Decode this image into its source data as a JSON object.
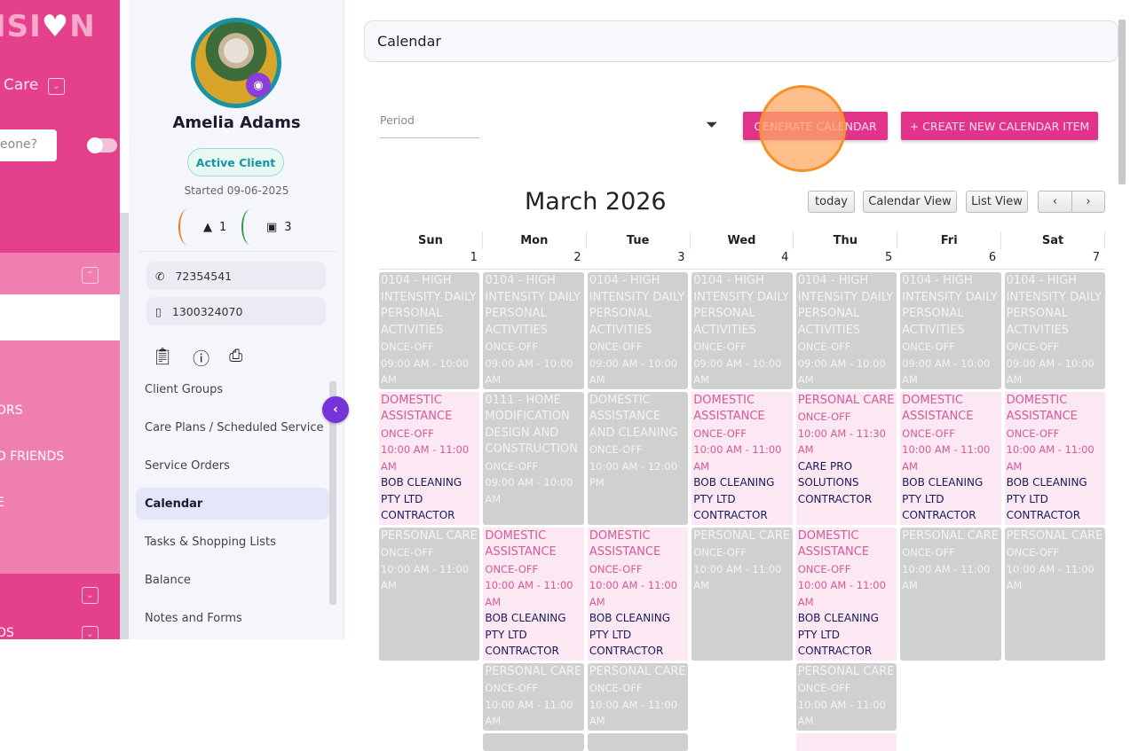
{
  "leftnav": {
    "logo": "ISI♥N",
    "org": "Care",
    "search_placeholder": "eone?",
    "items": [
      "ORS",
      "D FRIENDS",
      "E",
      "OS"
    ]
  },
  "client": {
    "name": "Amelia Adams",
    "status": "Active Client",
    "started": "Started 09-06-2025",
    "alerts": "1",
    "wallet": "3",
    "phone": "72354541",
    "mobile": "1300324070",
    "menu": [
      "Client Groups",
      "Care Plans / Scheduled Service",
      "Service Orders",
      "Calendar",
      "Tasks & Shopping Lists",
      "Balance",
      "Notes and Forms"
    ],
    "active_menu": "Calendar"
  },
  "main": {
    "title": "Calendar",
    "period_label": "Period",
    "generate": "GENERATE CALENDAR",
    "create": "+ CREATE NEW CALENDAR ITEM",
    "month": "March 2026",
    "today": "today",
    "calendar_view": "Calendar View",
    "list_view": "List View",
    "prev": "‹",
    "next": "›",
    "days": [
      "Sun",
      "Mon",
      "Tue",
      "Wed",
      "Thu",
      "Fri",
      "Sat"
    ],
    "dates": [
      "1",
      "2",
      "3",
      "4",
      "5",
      "6",
      "7"
    ]
  },
  "colors": {
    "brand_pink": "#e4408b",
    "button_pink": "#e2338a",
    "event_gray": "#d0d0d0",
    "event_pink_bg": "#fce8f2",
    "event_pink_text": "#d45a98",
    "accent_purple": "#7634d8",
    "teal": "#1893a6"
  },
  "events": [
    {
      "day": 0,
      "row": 1,
      "kind": "gray",
      "title": "0104 - HIGH INTENSITY DAILY PERSONAL ACTIVITIES",
      "freq": "ONCE-OFF",
      "time": "09:00 AM - 10:00 AM"
    },
    {
      "day": 1,
      "row": 1,
      "kind": "gray",
      "title": "0104 - HIGH INTENSITY DAILY PERSONAL ACTIVITIES",
      "freq": "ONCE-OFF",
      "time": "09:00 AM - 10:00 AM"
    },
    {
      "day": 2,
      "row": 1,
      "kind": "gray",
      "title": "0104 - HIGH INTENSITY DAILY PERSONAL ACTIVITIES",
      "freq": "ONCE-OFF",
      "time": "09:00 AM - 10:00 AM"
    },
    {
      "day": 3,
      "row": 1,
      "kind": "gray",
      "title": "0104 - HIGH INTENSITY DAILY PERSONAL ACTIVITIES",
      "freq": "ONCE-OFF",
      "time": "09:00 AM - 10:00 AM"
    },
    {
      "day": 4,
      "row": 1,
      "kind": "gray",
      "title": "0104 - HIGH INTENSITY DAILY PERSONAL ACTIVITIES",
      "freq": "ONCE-OFF",
      "time": "09:00 AM - 10:00 AM"
    },
    {
      "day": 5,
      "row": 1,
      "kind": "gray",
      "title": "0104 - HIGH INTENSITY DAILY PERSONAL ACTIVITIES",
      "freq": "ONCE-OFF",
      "time": "09:00 AM - 10:00 AM"
    },
    {
      "day": 6,
      "row": 1,
      "kind": "gray",
      "title": "0104 - HIGH INTENSITY DAILY PERSONAL ACTIVITIES",
      "freq": "ONCE-OFF",
      "time": "09:00 AM - 10:00 AM"
    },
    {
      "day": 0,
      "row": 2,
      "kind": "pink",
      "title": "DOMESTIC ASSISTANCE",
      "freq": "ONCE-OFF",
      "time": "10:00 AM - 11:00 AM",
      "contractor": "BOB CLEANING PTY LTD CONTRACTOR"
    },
    {
      "day": 1,
      "row": 2,
      "kind": "gray",
      "title": "0111 - HOME MODIFICATION DESIGN AND CONSTRUCTION",
      "freq": "ONCE-OFF",
      "time": "09:00 AM - 10:00 AM"
    },
    {
      "day": 2,
      "row": 2,
      "kind": "gray",
      "title": "DOMESTIC ASSISTANCE AND CLEANING",
      "freq": "ONCE-OFF",
      "time": "10:00 AM - 12:00 PM"
    },
    {
      "day": 3,
      "row": 2,
      "kind": "pink",
      "title": "DOMESTIC ASSISTANCE",
      "freq": "ONCE-OFF",
      "time": "10:00 AM - 11:00 AM",
      "contractor": "BOB CLEANING PTY LTD CONTRACTOR"
    },
    {
      "day": 4,
      "row": 2,
      "kind": "pink",
      "title": "PERSONAL CARE",
      "freq": "ONCE-OFF",
      "time": "10:00 AM - 11:30 AM",
      "contractor": "CARE PRO SOLUTIONS CONTRACTOR"
    },
    {
      "day": 5,
      "row": 2,
      "kind": "pink",
      "title": "DOMESTIC ASSISTANCE",
      "freq": "ONCE-OFF",
      "time": "10:00 AM - 11:00 AM",
      "contractor": "BOB CLEANING PTY LTD CONTRACTOR"
    },
    {
      "day": 6,
      "row": 2,
      "kind": "pink",
      "title": "DOMESTIC ASSISTANCE",
      "freq": "ONCE-OFF",
      "time": "10:00 AM - 11:00 AM",
      "contractor": "BOB CLEANING PTY LTD CONTRACTOR"
    },
    {
      "day": 0,
      "row": 3,
      "kind": "gray",
      "title": "PERSONAL CARE",
      "freq": "ONCE-OFF",
      "time": "10:00 AM - 11:00 AM"
    },
    {
      "day": 1,
      "row": 3,
      "kind": "pink",
      "title": "DOMESTIC ASSISTANCE",
      "freq": "ONCE-OFF",
      "time": "10:00 AM - 11:00 AM",
      "contractor": "BOB CLEANING PTY LTD CONTRACTOR"
    },
    {
      "day": 2,
      "row": 3,
      "kind": "pink",
      "title": "DOMESTIC ASSISTANCE",
      "freq": "ONCE-OFF",
      "time": "10:00 AM - 11:00 AM",
      "contractor": "BOB CLEANING PTY LTD CONTRACTOR"
    },
    {
      "day": 3,
      "row": 3,
      "kind": "gray",
      "title": "PERSONAL CARE",
      "freq": "ONCE-OFF",
      "time": "10:00 AM - 11:00 AM"
    },
    {
      "day": 4,
      "row": 3,
      "kind": "pink",
      "title": "DOMESTIC ASSISTANCE",
      "freq": "ONCE-OFF",
      "time": "10:00 AM - 11:00 AM",
      "contractor": "BOB CLEANING PTY LTD CONTRACTOR"
    },
    {
      "day": 5,
      "row": 3,
      "kind": "gray",
      "title": "PERSONAL CARE",
      "freq": "ONCE-OFF",
      "time": "10:00 AM - 11:00 AM"
    },
    {
      "day": 6,
      "row": 3,
      "kind": "gray",
      "title": "PERSONAL CARE",
      "freq": "ONCE-OFF",
      "time": "10:00 AM - 11:00 AM"
    },
    {
      "day": 1,
      "row": 4,
      "kind": "gray",
      "title": "PERSONAL CARE",
      "freq": "ONCE-OFF",
      "time": "10:00 AM - 11:00 AM"
    },
    {
      "day": 2,
      "row": 4,
      "kind": "gray",
      "title": "PERSONAL CARE",
      "freq": "ONCE-OFF",
      "time": "10:00 AM - 11:00 AM"
    },
    {
      "day": 4,
      "row": 4,
      "kind": "gray",
      "title": "PERSONAL CARE",
      "freq": "ONCE-OFF",
      "time": "10:00 AM - 11:00 AM"
    },
    {
      "day": 1,
      "row": 5,
      "kind": "gray"
    },
    {
      "day": 2,
      "row": 5,
      "kind": "gray"
    },
    {
      "day": 4,
      "row": 5,
      "kind": "pink"
    }
  ]
}
